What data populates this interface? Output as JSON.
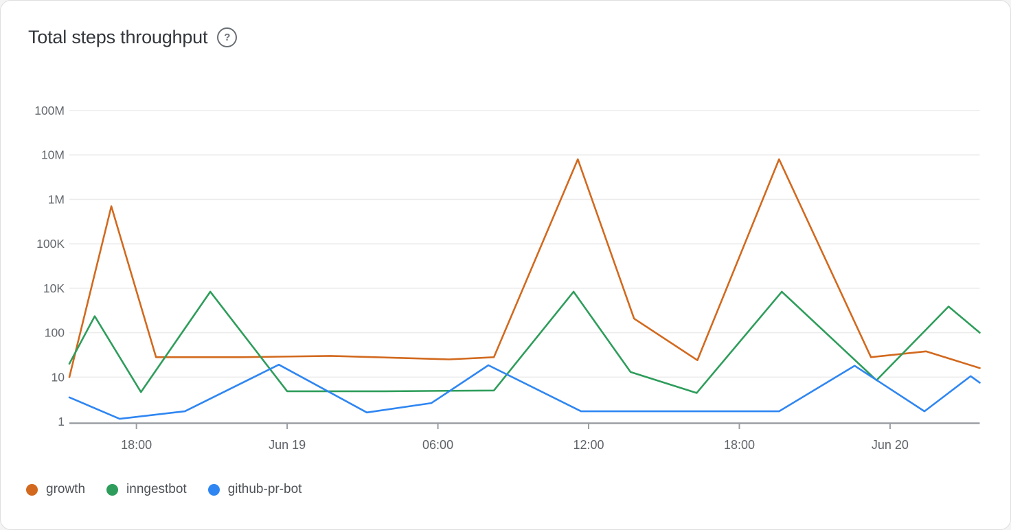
{
  "card": {
    "title": "Total steps throughput",
    "help_icon_glyph": "?"
  },
  "chart_data": {
    "type": "line",
    "title": "Total steps throughput",
    "grid": true,
    "legend_position": "bottom-left",
    "x_axis": {
      "tick_labels": [
        "18:00",
        "Jun 19",
        "06:00",
        "12:00",
        "18:00",
        "Jun 20"
      ],
      "tick_hours": [
        -6,
        0,
        6,
        12,
        18,
        24
      ],
      "range_hours": [
        -8.67,
        27.57
      ],
      "t_unit": "hours relative to Jun 19 00:00"
    },
    "y_axis": {
      "scale": "log",
      "tick_labels": [
        "1",
        "10",
        "100",
        "10K",
        "100K",
        "1M",
        "10M",
        "100M"
      ],
      "tick_values": [
        1,
        10,
        100,
        10000,
        100000,
        1000000,
        10000000,
        100000000
      ]
    },
    "series": [
      {
        "name": "growth",
        "color": "#D2691E",
        "points": [
          [
            -8.67,
            10
          ],
          [
            -7,
            700000
          ],
          [
            -5.22,
            28
          ],
          [
            -1.83,
            28
          ],
          [
            1.72,
            30
          ],
          [
            6.45,
            25
          ],
          [
            8.23,
            28
          ],
          [
            11.57,
            8000000
          ],
          [
            13.81,
            430
          ],
          [
            16.33,
            24
          ],
          [
            19.58,
            8000000
          ],
          [
            23.24,
            28
          ],
          [
            25.43,
            38
          ],
          [
            27.57,
            16
          ]
        ]
      },
      {
        "name": "inngestbot",
        "color": "#2E9D5B",
        "points": [
          [
            -8.67,
            20
          ],
          [
            -7.66,
            550
          ],
          [
            -5.82,
            4.6
          ],
          [
            -3.06,
            7000
          ],
          [
            0,
            4.8
          ],
          [
            3.91,
            4.8
          ],
          [
            8.23,
            5
          ],
          [
            11.4,
            7000
          ],
          [
            13.67,
            13
          ],
          [
            16.3,
            4.4
          ],
          [
            19.69,
            7000
          ],
          [
            23.46,
            8.5
          ],
          [
            26.33,
            1500
          ],
          [
            27.57,
            100
          ]
        ]
      },
      {
        "name": "github-pr-bot",
        "color": "#2F86F2",
        "points": [
          [
            -8.67,
            3.5
          ],
          [
            -6.67,
            1.15
          ],
          [
            -4.07,
            1.7
          ],
          [
            -0.33,
            19
          ],
          [
            3.17,
            1.6
          ],
          [
            5.74,
            2.6
          ],
          [
            8.01,
            18.5
          ],
          [
            11.7,
            1.7
          ],
          [
            19.58,
            1.7
          ],
          [
            22.59,
            18
          ],
          [
            25.37,
            1.7
          ],
          [
            27.21,
            10.5
          ],
          [
            27.57,
            7.5
          ]
        ]
      }
    ]
  }
}
